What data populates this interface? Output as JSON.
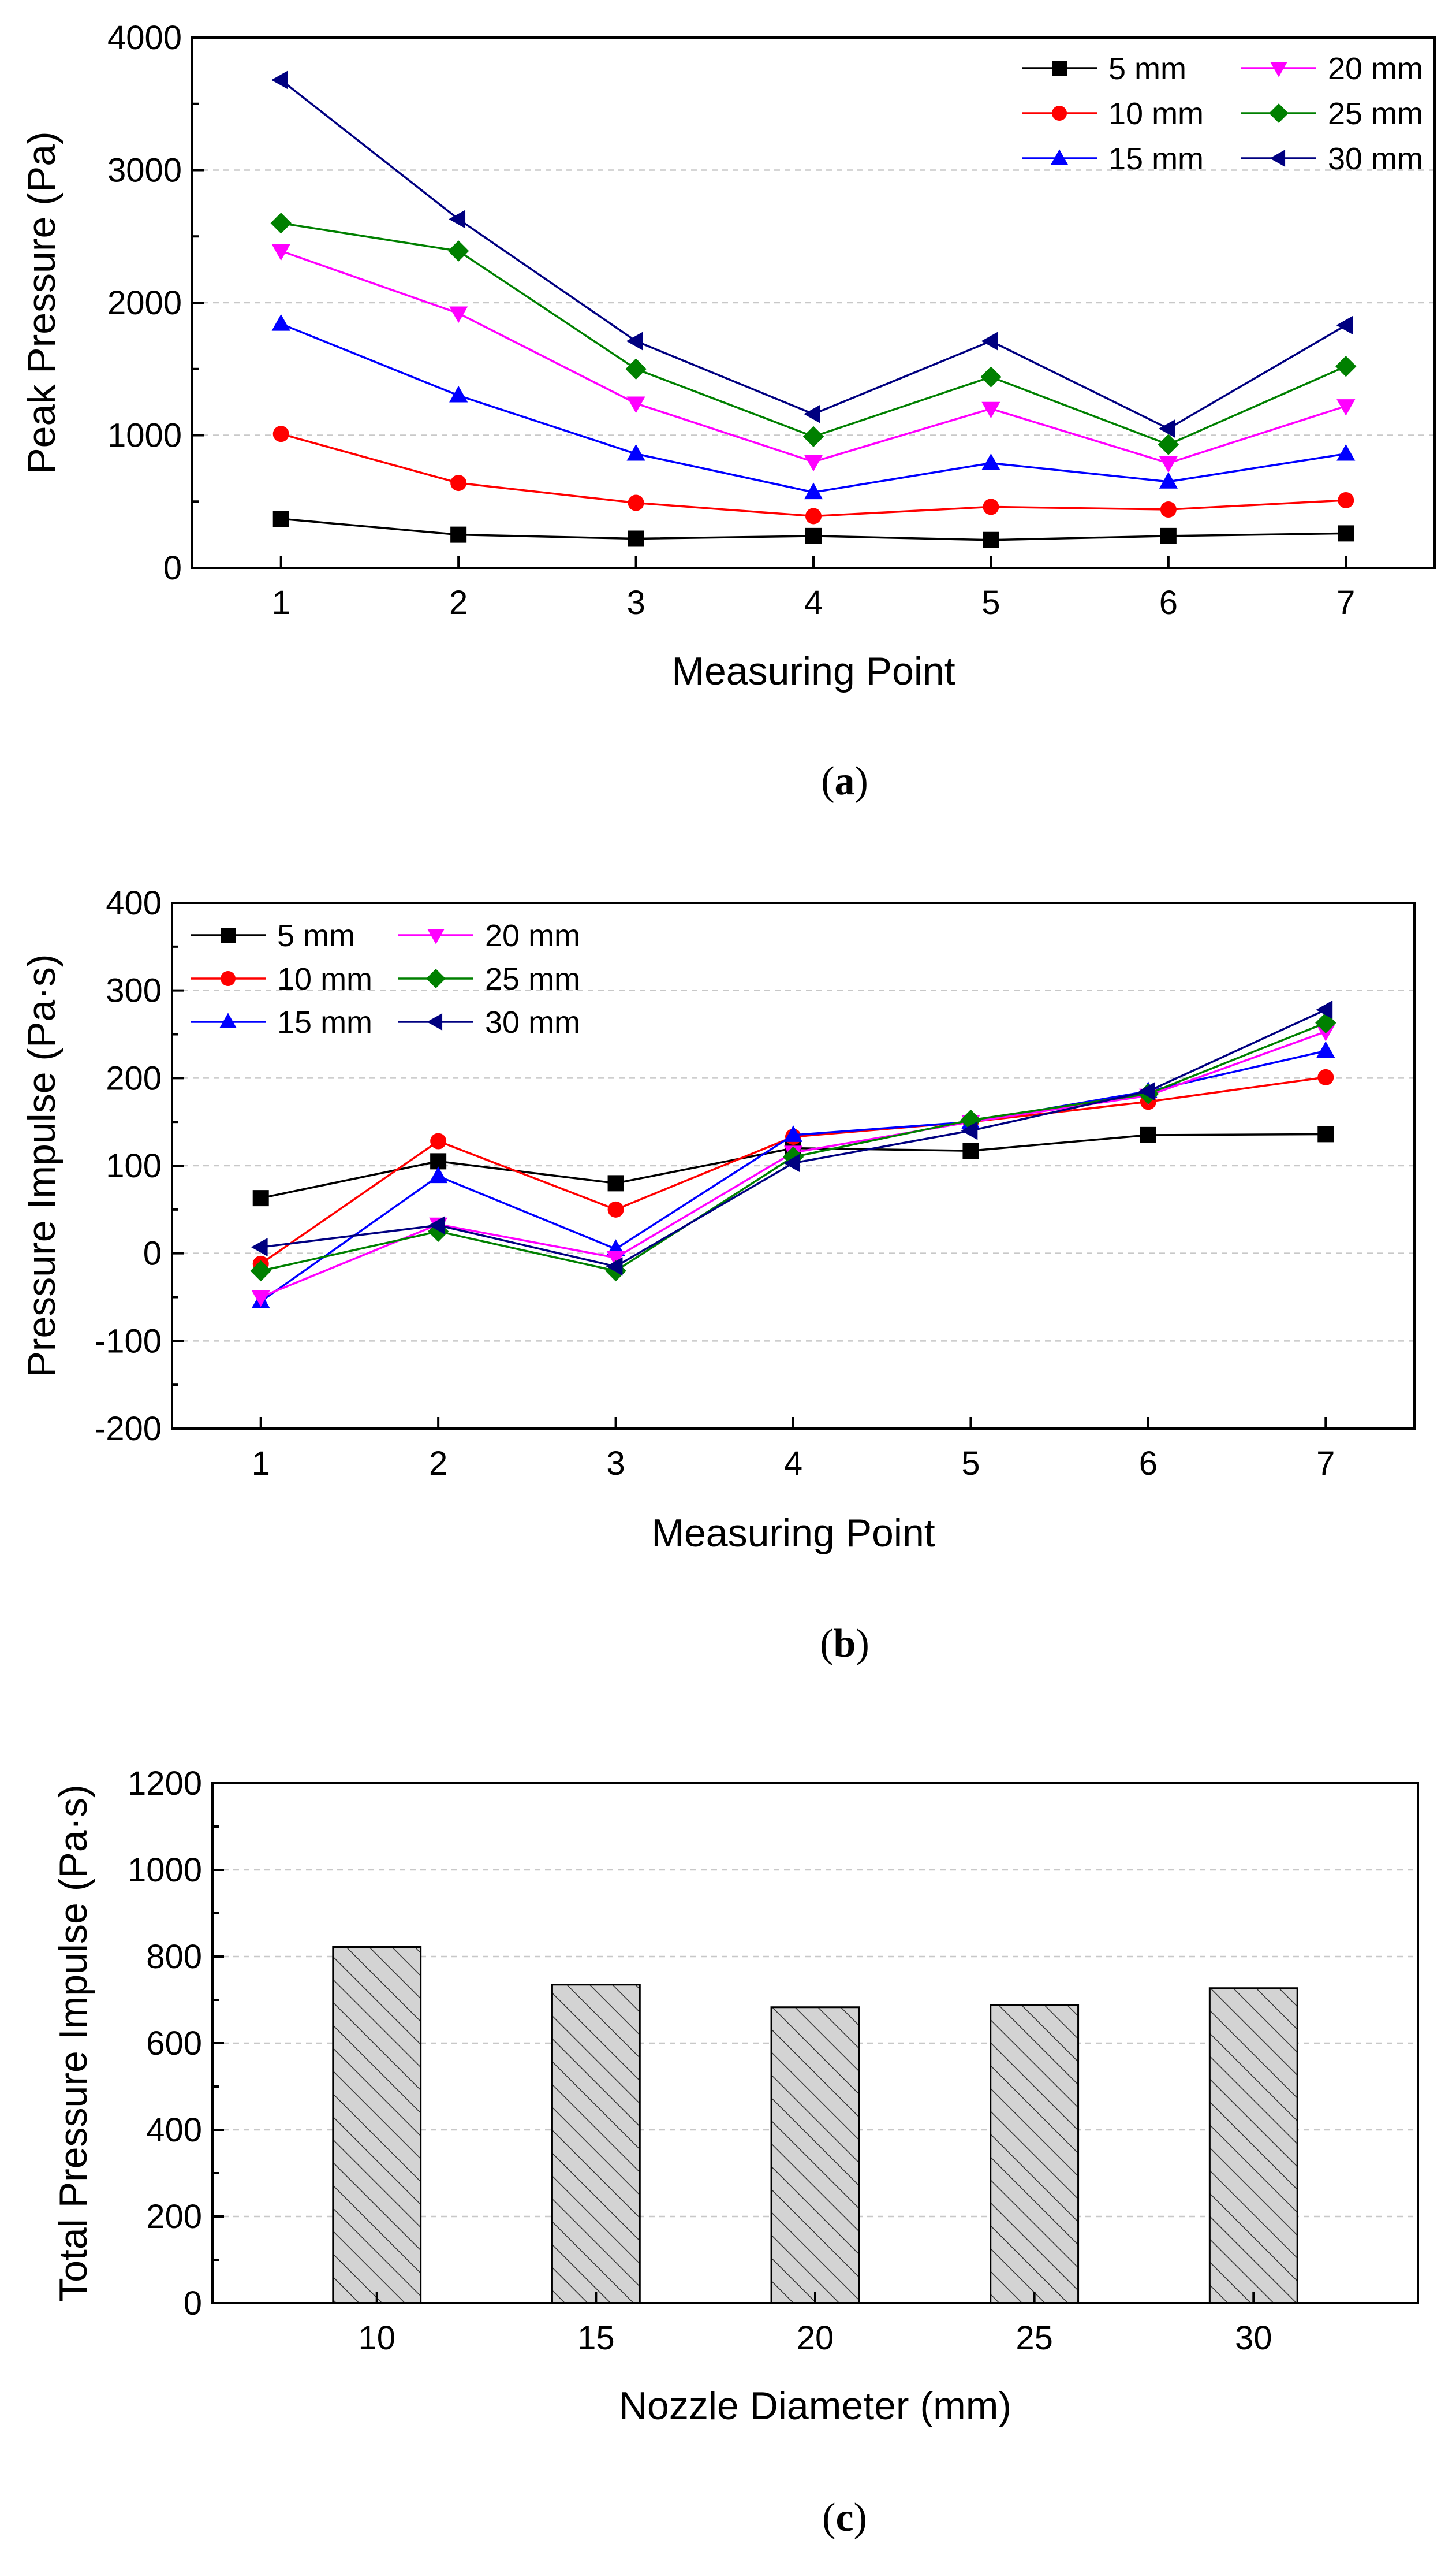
{
  "chart_data": [
    {
      "type": "line",
      "panel_label": "a",
      "xlabel": "Measuring Point",
      "ylabel": "Peak Pressure (Pa)",
      "x": [
        1,
        2,
        3,
        4,
        5,
        6,
        7
      ],
      "xlim": [
        0.5,
        7.5
      ],
      "ylim": [
        0,
        4000
      ],
      "yticks": [
        0,
        1000,
        2000,
        3000,
        4000
      ],
      "grid": true,
      "legend_position": "top-right",
      "series": [
        {
          "name": "5 mm",
          "color": "#000000",
          "marker": "square",
          "values": [
            370,
            250,
            220,
            240,
            210,
            240,
            260
          ]
        },
        {
          "name": "10 mm",
          "color": "#ff0000",
          "marker": "circle",
          "values": [
            1010,
            640,
            490,
            390,
            460,
            440,
            510
          ]
        },
        {
          "name": "15 mm",
          "color": "#0000ff",
          "marker": "triangle-up",
          "values": [
            1840,
            1300,
            860,
            570,
            790,
            650,
            860
          ]
        },
        {
          "name": "20 mm",
          "color": "#ff00ff",
          "marker": "triangle-down",
          "values": [
            2390,
            1920,
            1240,
            800,
            1200,
            790,
            1220
          ]
        },
        {
          "name": "25 mm",
          "color": "#008000",
          "marker": "diamond",
          "values": [
            2600,
            2390,
            1500,
            990,
            1440,
            930,
            1520
          ]
        },
        {
          "name": "30 mm",
          "color": "#000080",
          "marker": "triangle-left",
          "values": [
            3680,
            2630,
            1710,
            1160,
            1710,
            1050,
            1830
          ]
        }
      ]
    },
    {
      "type": "line",
      "panel_label": "b",
      "xlabel": "Measuring Point",
      "ylabel": "Pressure Impulse (Pa·s)",
      "x": [
        1,
        2,
        3,
        4,
        5,
        6,
        7
      ],
      "xlim": [
        0.5,
        7.5
      ],
      "ylim": [
        -200,
        400
      ],
      "yticks": [
        -200,
        -100,
        0,
        100,
        200,
        300,
        400
      ],
      "grid": true,
      "legend_position": "top-left",
      "series": [
        {
          "name": "5 mm",
          "color": "#000000",
          "marker": "square",
          "values": [
            63,
            105,
            80,
            120,
            117,
            135,
            136
          ]
        },
        {
          "name": "10 mm",
          "color": "#ff0000",
          "marker": "circle",
          "values": [
            -12,
            128,
            50,
            133,
            150,
            173,
            201
          ]
        },
        {
          "name": "15 mm",
          "color": "#0000ff",
          "marker": "triangle-up",
          "values": [
            -55,
            88,
            5,
            135,
            150,
            185,
            231
          ]
        },
        {
          "name": "20 mm",
          "color": "#ff00ff",
          "marker": "triangle-down",
          "values": [
            -50,
            33,
            -5,
            115,
            150,
            180,
            253
          ]
        },
        {
          "name": "25 mm",
          "color": "#008000",
          "marker": "diamond",
          "values": [
            -20,
            25,
            -20,
            110,
            152,
            182,
            263
          ]
        },
        {
          "name": "30 mm",
          "color": "#000080",
          "marker": "triangle-left",
          "values": [
            7,
            32,
            -15,
            103,
            140,
            185,
            278
          ]
        }
      ]
    },
    {
      "type": "bar",
      "panel_label": "c",
      "xlabel": "Nozzle Diameter (mm)",
      "ylabel": "Total Pressure Impulse (Pa·s)",
      "categories": [
        "10",
        "15",
        "20",
        "25",
        "30"
      ],
      "values": [
        822,
        735,
        683,
        688,
        727
      ],
      "ylim": [
        0,
        1200
      ],
      "yticks": [
        0,
        200,
        400,
        600,
        800,
        1000,
        1200
      ],
      "grid": true,
      "bar_fill": "#d3d3d3",
      "bar_hatch": "diagonal"
    }
  ]
}
